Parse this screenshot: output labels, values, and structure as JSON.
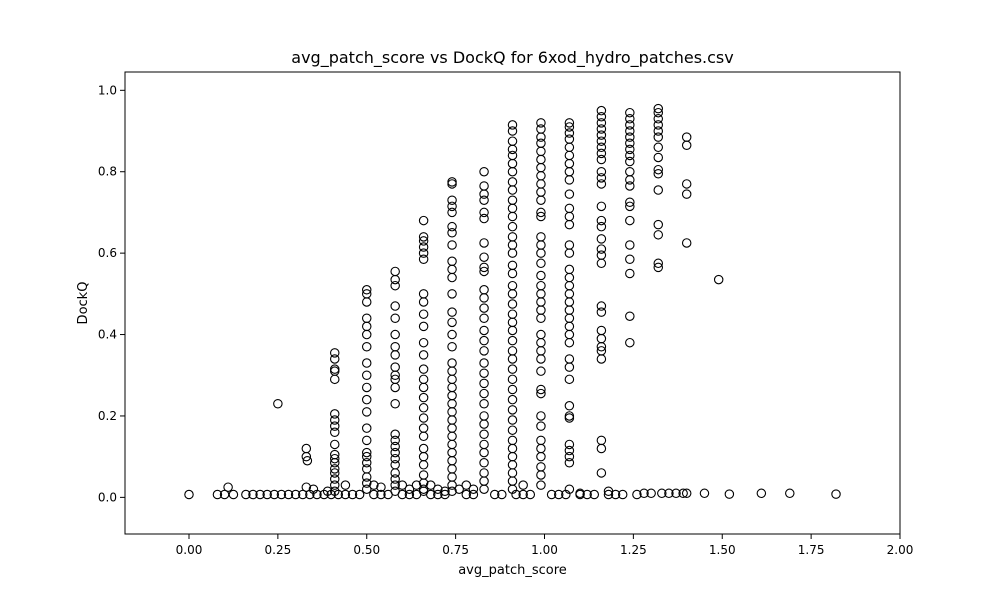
{
  "chart_data": {
    "type": "scatter",
    "title": "avg_patch_score vs DockQ for 6xod_hydro_patches.csv",
    "xlabel": "avg_patch_score",
    "ylabel": "DockQ",
    "xlim": [
      -0.18,
      2.0
    ],
    "ylim": [
      -0.09,
      1.045
    ],
    "xticks": [
      0.0,
      0.25,
      0.5,
      0.75,
      1.0,
      1.25,
      1.5,
      1.75,
      2.0
    ],
    "xtick_labels": [
      "0.00",
      "0.25",
      "0.50",
      "0.75",
      "1.00",
      "1.25",
      "1.50",
      "1.75",
      "2.00"
    ],
    "yticks": [
      0.0,
      0.2,
      0.4,
      0.6,
      0.8,
      1.0
    ],
    "ytick_labels": [
      "0.0",
      "0.2",
      "0.4",
      "0.6",
      "0.8",
      "1.0"
    ],
    "grid": false,
    "marker": "open-circle",
    "marker_color": "#000000",
    "points": [
      [
        0.0,
        0.007
      ],
      [
        0.08,
        0.007
      ],
      [
        0.1,
        0.007
      ],
      [
        0.11,
        0.025
      ],
      [
        0.125,
        0.007
      ],
      [
        0.16,
        0.007
      ],
      [
        0.18,
        0.007
      ],
      [
        0.2,
        0.007
      ],
      [
        0.22,
        0.007
      ],
      [
        0.24,
        0.007
      ],
      [
        0.25,
        0.23
      ],
      [
        0.26,
        0.007
      ],
      [
        0.28,
        0.007
      ],
      [
        0.3,
        0.007
      ],
      [
        0.32,
        0.007
      ],
      [
        0.34,
        0.007
      ],
      [
        0.36,
        0.007
      ],
      [
        0.38,
        0.007
      ],
      [
        0.4,
        0.007
      ],
      [
        0.42,
        0.007
      ],
      [
        0.44,
        0.007
      ],
      [
        0.46,
        0.007
      ],
      [
        0.48,
        0.007
      ],
      [
        0.52,
        0.007
      ],
      [
        0.54,
        0.007
      ],
      [
        0.56,
        0.007
      ],
      [
        0.6,
        0.007
      ],
      [
        0.62,
        0.007
      ],
      [
        0.64,
        0.007
      ],
      [
        0.68,
        0.007
      ],
      [
        0.7,
        0.007
      ],
      [
        0.72,
        0.007
      ],
      [
        0.78,
        0.007
      ],
      [
        0.8,
        0.007
      ],
      [
        0.86,
        0.007
      ],
      [
        0.88,
        0.007
      ],
      [
        0.92,
        0.007
      ],
      [
        0.94,
        0.007
      ],
      [
        0.96,
        0.007
      ],
      [
        1.02,
        0.007
      ],
      [
        1.04,
        0.007
      ],
      [
        1.06,
        0.007
      ],
      [
        1.1,
        0.007
      ],
      [
        1.12,
        0.007
      ],
      [
        1.14,
        0.007
      ],
      [
        1.18,
        0.007
      ],
      [
        1.2,
        0.007
      ],
      [
        1.22,
        0.007
      ],
      [
        1.26,
        0.007
      ],
      [
        1.28,
        0.01
      ],
      [
        1.3,
        0.01
      ],
      [
        1.33,
        0.01
      ],
      [
        1.35,
        0.01
      ],
      [
        1.37,
        0.01
      ],
      [
        1.39,
        0.01
      ],
      [
        1.4,
        0.01
      ],
      [
        1.45,
        0.01
      ],
      [
        1.52,
        0.008
      ],
      [
        1.61,
        0.01
      ],
      [
        1.69,
        0.01
      ],
      [
        1.82,
        0.008
      ],
      [
        0.33,
        0.1
      ],
      [
        0.33,
        0.12
      ],
      [
        0.333,
        0.09
      ],
      [
        0.33,
        0.025
      ],
      [
        0.35,
        0.02
      ],
      [
        0.44,
        0.03
      ],
      [
        0.39,
        0.015
      ],
      [
        0.41,
        0.355
      ],
      [
        0.41,
        0.34
      ],
      [
        0.41,
        0.315
      ],
      [
        0.41,
        0.31
      ],
      [
        0.41,
        0.29
      ],
      [
        0.41,
        0.205
      ],
      [
        0.41,
        0.19
      ],
      [
        0.41,
        0.175
      ],
      [
        0.41,
        0.16
      ],
      [
        0.41,
        0.13
      ],
      [
        0.41,
        0.105
      ],
      [
        0.41,
        0.095
      ],
      [
        0.41,
        0.085
      ],
      [
        0.41,
        0.07
      ],
      [
        0.41,
        0.06
      ],
      [
        0.41,
        0.045
      ],
      [
        0.41,
        0.03
      ],
      [
        0.41,
        0.015
      ],
      [
        0.5,
        0.51
      ],
      [
        0.5,
        0.5
      ],
      [
        0.5,
        0.48
      ],
      [
        0.5,
        0.44
      ],
      [
        0.5,
        0.42
      ],
      [
        0.5,
        0.4
      ],
      [
        0.5,
        0.37
      ],
      [
        0.5,
        0.33
      ],
      [
        0.5,
        0.3
      ],
      [
        0.5,
        0.27
      ],
      [
        0.5,
        0.24
      ],
      [
        0.5,
        0.21
      ],
      [
        0.5,
        0.17
      ],
      [
        0.5,
        0.14
      ],
      [
        0.5,
        0.11
      ],
      [
        0.5,
        0.1
      ],
      [
        0.5,
        0.085
      ],
      [
        0.5,
        0.07
      ],
      [
        0.5,
        0.05
      ],
      [
        0.5,
        0.035
      ],
      [
        0.5,
        0.02
      ],
      [
        0.52,
        0.03
      ],
      [
        0.54,
        0.025
      ],
      [
        0.58,
        0.555
      ],
      [
        0.58,
        0.535
      ],
      [
        0.58,
        0.52
      ],
      [
        0.58,
        0.47
      ],
      [
        0.58,
        0.44
      ],
      [
        0.58,
        0.4
      ],
      [
        0.58,
        0.37
      ],
      [
        0.58,
        0.35
      ],
      [
        0.58,
        0.32
      ],
      [
        0.58,
        0.3
      ],
      [
        0.58,
        0.29
      ],
      [
        0.58,
        0.27
      ],
      [
        0.58,
        0.23
      ],
      [
        0.58,
        0.155
      ],
      [
        0.58,
        0.14
      ],
      [
        0.58,
        0.125
      ],
      [
        0.58,
        0.11
      ],
      [
        0.58,
        0.095
      ],
      [
        0.58,
        0.08
      ],
      [
        0.58,
        0.06
      ],
      [
        0.58,
        0.045
      ],
      [
        0.58,
        0.03
      ],
      [
        0.58,
        0.015
      ],
      [
        0.6,
        0.03
      ],
      [
        0.62,
        0.02
      ],
      [
        0.64,
        0.03
      ],
      [
        0.66,
        0.015
      ],
      [
        0.68,
        0.03
      ],
      [
        0.7,
        0.02
      ],
      [
        0.72,
        0.015
      ],
      [
        0.66,
        0.68
      ],
      [
        0.66,
        0.64
      ],
      [
        0.66,
        0.63
      ],
      [
        0.66,
        0.615
      ],
      [
        0.66,
        0.6
      ],
      [
        0.66,
        0.585
      ],
      [
        0.66,
        0.5
      ],
      [
        0.66,
        0.48
      ],
      [
        0.66,
        0.45
      ],
      [
        0.66,
        0.42
      ],
      [
        0.66,
        0.38
      ],
      [
        0.66,
        0.35
      ],
      [
        0.66,
        0.315
      ],
      [
        0.66,
        0.29
      ],
      [
        0.66,
        0.27
      ],
      [
        0.66,
        0.245
      ],
      [
        0.66,
        0.22
      ],
      [
        0.66,
        0.195
      ],
      [
        0.66,
        0.17
      ],
      [
        0.66,
        0.15
      ],
      [
        0.66,
        0.12
      ],
      [
        0.66,
        0.1
      ],
      [
        0.66,
        0.08
      ],
      [
        0.66,
        0.055
      ],
      [
        0.66,
        0.035
      ],
      [
        0.66,
        0.02
      ],
      [
        0.74,
        0.775
      ],
      [
        0.74,
        0.77
      ],
      [
        0.74,
        0.73
      ],
      [
        0.74,
        0.715
      ],
      [
        0.74,
        0.7
      ],
      [
        0.74,
        0.665
      ],
      [
        0.74,
        0.65
      ],
      [
        0.74,
        0.62
      ],
      [
        0.74,
        0.58
      ],
      [
        0.74,
        0.56
      ],
      [
        0.74,
        0.54
      ],
      [
        0.74,
        0.5
      ],
      [
        0.74,
        0.455
      ],
      [
        0.74,
        0.43
      ],
      [
        0.74,
        0.4
      ],
      [
        0.74,
        0.37
      ],
      [
        0.74,
        0.33
      ],
      [
        0.74,
        0.31
      ],
      [
        0.74,
        0.29
      ],
      [
        0.74,
        0.27
      ],
      [
        0.74,
        0.25
      ],
      [
        0.74,
        0.23
      ],
      [
        0.74,
        0.21
      ],
      [
        0.74,
        0.19
      ],
      [
        0.74,
        0.17
      ],
      [
        0.74,
        0.15
      ],
      [
        0.74,
        0.13
      ],
      [
        0.74,
        0.11
      ],
      [
        0.74,
        0.09
      ],
      [
        0.74,
        0.07
      ],
      [
        0.74,
        0.05
      ],
      [
        0.74,
        0.03
      ],
      [
        0.74,
        0.015
      ],
      [
        0.76,
        0.02
      ],
      [
        0.78,
        0.03
      ],
      [
        0.8,
        0.02
      ],
      [
        0.83,
        0.8
      ],
      [
        0.83,
        0.765
      ],
      [
        0.83,
        0.745
      ],
      [
        0.83,
        0.73
      ],
      [
        0.83,
        0.7
      ],
      [
        0.83,
        0.685
      ],
      [
        0.83,
        0.625
      ],
      [
        0.83,
        0.59
      ],
      [
        0.83,
        0.565
      ],
      [
        0.83,
        0.555
      ],
      [
        0.83,
        0.51
      ],
      [
        0.83,
        0.49
      ],
      [
        0.83,
        0.465
      ],
      [
        0.83,
        0.44
      ],
      [
        0.83,
        0.41
      ],
      [
        0.83,
        0.385
      ],
      [
        0.83,
        0.36
      ],
      [
        0.83,
        0.33
      ],
      [
        0.83,
        0.305
      ],
      [
        0.83,
        0.28
      ],
      [
        0.83,
        0.255
      ],
      [
        0.83,
        0.23
      ],
      [
        0.83,
        0.2
      ],
      [
        0.83,
        0.18
      ],
      [
        0.83,
        0.155
      ],
      [
        0.83,
        0.13
      ],
      [
        0.83,
        0.11
      ],
      [
        0.83,
        0.085
      ],
      [
        0.83,
        0.06
      ],
      [
        0.83,
        0.04
      ],
      [
        0.83,
        0.02
      ],
      [
        0.91,
        0.915
      ],
      [
        0.91,
        0.9
      ],
      [
        0.91,
        0.875
      ],
      [
        0.91,
        0.855
      ],
      [
        0.91,
        0.84
      ],
      [
        0.91,
        0.82
      ],
      [
        0.91,
        0.8
      ],
      [
        0.91,
        0.775
      ],
      [
        0.91,
        0.755
      ],
      [
        0.91,
        0.73
      ],
      [
        0.91,
        0.71
      ],
      [
        0.91,
        0.69
      ],
      [
        0.91,
        0.665
      ],
      [
        0.91,
        0.64
      ],
      [
        0.91,
        0.62
      ],
      [
        0.91,
        0.6
      ],
      [
        0.91,
        0.57
      ],
      [
        0.91,
        0.55
      ],
      [
        0.91,
        0.52
      ],
      [
        0.91,
        0.5
      ],
      [
        0.91,
        0.475
      ],
      [
        0.91,
        0.45
      ],
      [
        0.91,
        0.43
      ],
      [
        0.91,
        0.41
      ],
      [
        0.91,
        0.385
      ],
      [
        0.91,
        0.36
      ],
      [
        0.91,
        0.34
      ],
      [
        0.91,
        0.315
      ],
      [
        0.91,
        0.29
      ],
      [
        0.91,
        0.265
      ],
      [
        0.91,
        0.24
      ],
      [
        0.91,
        0.215
      ],
      [
        0.91,
        0.19
      ],
      [
        0.91,
        0.165
      ],
      [
        0.91,
        0.14
      ],
      [
        0.91,
        0.12
      ],
      [
        0.91,
        0.1
      ],
      [
        0.91,
        0.08
      ],
      [
        0.91,
        0.06
      ],
      [
        0.91,
        0.04
      ],
      [
        0.91,
        0.02
      ],
      [
        0.94,
        0.03
      ],
      [
        0.99,
        0.92
      ],
      [
        0.99,
        0.905
      ],
      [
        0.99,
        0.885
      ],
      [
        0.99,
        0.87
      ],
      [
        0.99,
        0.85
      ],
      [
        0.99,
        0.83
      ],
      [
        0.99,
        0.81
      ],
      [
        0.99,
        0.79
      ],
      [
        0.99,
        0.77
      ],
      [
        0.99,
        0.75
      ],
      [
        0.99,
        0.73
      ],
      [
        0.99,
        0.7
      ],
      [
        0.99,
        0.69
      ],
      [
        0.99,
        0.64
      ],
      [
        0.99,
        0.62
      ],
      [
        0.99,
        0.6
      ],
      [
        0.99,
        0.575
      ],
      [
        0.99,
        0.545
      ],
      [
        0.99,
        0.52
      ],
      [
        0.99,
        0.5
      ],
      [
        0.99,
        0.48
      ],
      [
        0.99,
        0.46
      ],
      [
        0.99,
        0.44
      ],
      [
        0.99,
        0.4
      ],
      [
        0.99,
        0.38
      ],
      [
        0.99,
        0.36
      ],
      [
        0.99,
        0.34
      ],
      [
        0.99,
        0.31
      ],
      [
        0.99,
        0.265
      ],
      [
        0.99,
        0.255
      ],
      [
        0.99,
        0.2
      ],
      [
        0.99,
        0.175
      ],
      [
        0.99,
        0.14
      ],
      [
        0.99,
        0.12
      ],
      [
        0.99,
        0.1
      ],
      [
        0.99,
        0.075
      ],
      [
        0.99,
        0.055
      ],
      [
        0.99,
        0.03
      ],
      [
        1.07,
        0.92
      ],
      [
        1.07,
        0.91
      ],
      [
        1.07,
        0.895
      ],
      [
        1.07,
        0.88
      ],
      [
        1.07,
        0.86
      ],
      [
        1.07,
        0.84
      ],
      [
        1.07,
        0.82
      ],
      [
        1.07,
        0.8
      ],
      [
        1.07,
        0.78
      ],
      [
        1.07,
        0.745
      ],
      [
        1.07,
        0.71
      ],
      [
        1.07,
        0.69
      ],
      [
        1.07,
        0.67
      ],
      [
        1.07,
        0.62
      ],
      [
        1.07,
        0.6
      ],
      [
        1.07,
        0.56
      ],
      [
        1.07,
        0.54
      ],
      [
        1.07,
        0.52
      ],
      [
        1.07,
        0.5
      ],
      [
        1.07,
        0.48
      ],
      [
        1.07,
        0.46
      ],
      [
        1.07,
        0.44
      ],
      [
        1.07,
        0.42
      ],
      [
        1.07,
        0.4
      ],
      [
        1.07,
        0.38
      ],
      [
        1.07,
        0.34
      ],
      [
        1.07,
        0.32
      ],
      [
        1.07,
        0.29
      ],
      [
        1.07,
        0.225
      ],
      [
        1.07,
        0.2
      ],
      [
        1.07,
        0.195
      ],
      [
        1.07,
        0.13
      ],
      [
        1.07,
        0.115
      ],
      [
        1.07,
        0.1
      ],
      [
        1.07,
        0.085
      ],
      [
        1.07,
        0.02
      ],
      [
        1.1,
        0.01
      ],
      [
        1.16,
        0.95
      ],
      [
        1.16,
        0.935
      ],
      [
        1.16,
        0.92
      ],
      [
        1.16,
        0.905
      ],
      [
        1.16,
        0.89
      ],
      [
        1.16,
        0.875
      ],
      [
        1.16,
        0.86
      ],
      [
        1.16,
        0.845
      ],
      [
        1.16,
        0.83
      ],
      [
        1.16,
        0.8
      ],
      [
        1.16,
        0.785
      ],
      [
        1.16,
        0.77
      ],
      [
        1.16,
        0.715
      ],
      [
        1.16,
        0.68
      ],
      [
        1.16,
        0.665
      ],
      [
        1.16,
        0.635
      ],
      [
        1.16,
        0.61
      ],
      [
        1.16,
        0.595
      ],
      [
        1.16,
        0.575
      ],
      [
        1.16,
        0.47
      ],
      [
        1.16,
        0.455
      ],
      [
        1.16,
        0.41
      ],
      [
        1.16,
        0.39
      ],
      [
        1.16,
        0.37
      ],
      [
        1.16,
        0.36
      ],
      [
        1.16,
        0.34
      ],
      [
        1.16,
        0.14
      ],
      [
        1.16,
        0.12
      ],
      [
        1.16,
        0.06
      ],
      [
        1.18,
        0.015
      ],
      [
        1.24,
        0.945
      ],
      [
        1.24,
        0.93
      ],
      [
        1.24,
        0.915
      ],
      [
        1.24,
        0.9
      ],
      [
        1.24,
        0.885
      ],
      [
        1.24,
        0.87
      ],
      [
        1.24,
        0.855
      ],
      [
        1.24,
        0.84
      ],
      [
        1.24,
        0.825
      ],
      [
        1.24,
        0.8
      ],
      [
        1.24,
        0.78
      ],
      [
        1.24,
        0.765
      ],
      [
        1.24,
        0.725
      ],
      [
        1.24,
        0.715
      ],
      [
        1.24,
        0.68
      ],
      [
        1.24,
        0.62
      ],
      [
        1.24,
        0.585
      ],
      [
        1.24,
        0.55
      ],
      [
        1.24,
        0.445
      ],
      [
        1.24,
        0.38
      ],
      [
        1.32,
        0.955
      ],
      [
        1.32,
        0.945
      ],
      [
        1.32,
        0.93
      ],
      [
        1.32,
        0.915
      ],
      [
        1.32,
        0.9
      ],
      [
        1.32,
        0.885
      ],
      [
        1.32,
        0.86
      ],
      [
        1.32,
        0.835
      ],
      [
        1.32,
        0.805
      ],
      [
        1.32,
        0.795
      ],
      [
        1.32,
        0.755
      ],
      [
        1.32,
        0.67
      ],
      [
        1.32,
        0.645
      ],
      [
        1.32,
        0.575
      ],
      [
        1.32,
        0.565
      ],
      [
        1.4,
        0.885
      ],
      [
        1.4,
        0.865
      ],
      [
        1.4,
        0.77
      ],
      [
        1.4,
        0.745
      ],
      [
        1.4,
        0.625
      ],
      [
        1.49,
        0.535
      ]
    ]
  }
}
